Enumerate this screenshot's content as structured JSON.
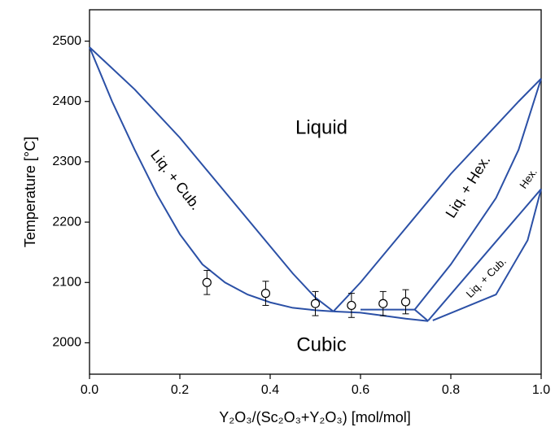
{
  "chart_data": {
    "type": "line",
    "xlabel": "Y₂O₃/(Sc₂O₃+Y₂O₃) [mol/mol]",
    "ylabel": "Temperature [°C]",
    "xlim": [
      0,
      1
    ],
    "ylim": [
      1948,
      2552
    ],
    "xticks": [
      {
        "value": 0,
        "label": "0.0"
      },
      0.2,
      0.4,
      0.6,
      0.8,
      {
        "value": 1,
        "label": "1.0"
      }
    ],
    "yticks": [
      2000,
      2100,
      2200,
      2300,
      2400,
      2500
    ],
    "annotations": [
      "Liquid",
      "Liq. + Cub.",
      "Liq. + Hex.",
      "Hex.",
      "Liq. + Cub.",
      "Cubic"
    ],
    "series": [
      {
        "color": "#2b50a6",
        "x": [
          0,
          0.05,
          0.1,
          0.15,
          0.2,
          0.25,
          0.3,
          0.35,
          0.4,
          0.45,
          0.5,
          0.54
        ],
        "values": [
          2490,
          2400,
          2320,
          2245,
          2180,
          2130,
          2100,
          2080,
          2067,
          2058,
          2054,
          2052
        ]
      },
      {
        "color": "#2b50a6",
        "x": [
          0,
          0.1,
          0.2,
          0.3,
          0.4,
          0.45,
          0.5,
          0.54
        ],
        "values": [
          2490,
          2420,
          2340,
          2250,
          2160,
          2115,
          2075,
          2052
        ]
      },
      {
        "color": "#2b50a6",
        "x": [
          0.54,
          0.6,
          0.7,
          0.8,
          0.9,
          0.95,
          1
        ],
        "values": [
          2052,
          2100,
          2190,
          2280,
          2360,
          2400,
          2438
        ]
      },
      {
        "color": "#2b50a6",
        "x": [
          0.54,
          0.6,
          0.65,
          0.7,
          0.75
        ],
        "values": [
          2052,
          2050,
          2045,
          2040,
          2036
        ]
      },
      {
        "color": "#2b50a6",
        "x": [
          0.6,
          0.72,
          0.75
        ],
        "values": [
          2055,
          2055,
          2036
        ]
      },
      {
        "color": "#2b50a6",
        "x": [
          0.72,
          0.8,
          0.9,
          0.95,
          1
        ],
        "values": [
          2055,
          2130,
          2240,
          2320,
          2438
        ]
      },
      {
        "color": "#2b50a6",
        "x": [
          0.75,
          1
        ],
        "values": [
          2037,
          2255
        ]
      },
      {
        "color": "#2b50a6",
        "x": [
          0.76,
          0.9,
          0.97,
          1
        ],
        "values": [
          2037,
          2080,
          2170,
          2255
        ]
      }
    ],
    "points": {
      "color": "#000000",
      "x": [
        0.26,
        0.39,
        0.5,
        0.58,
        0.65,
        0.7
      ],
      "values": [
        2100,
        2082,
        2065,
        2062,
        2065,
        2068
      ],
      "errors": [
        20,
        20,
        20,
        20,
        20,
        20
      ]
    }
  }
}
